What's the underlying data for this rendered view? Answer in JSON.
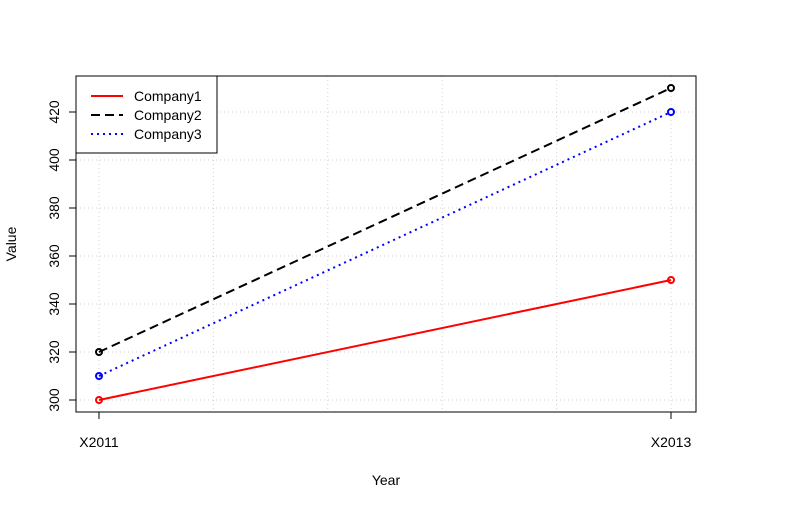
{
  "chart_data": {
    "type": "line",
    "title": "",
    "xlabel": "Year",
    "ylabel": "Value",
    "categories": [
      "X2011",
      "X2013"
    ],
    "x_tick_labels": [
      "X2011",
      "X2013"
    ],
    "y_ticks": [
      300,
      320,
      340,
      360,
      380,
      400,
      420
    ],
    "ylim": [
      295,
      435
    ],
    "grid": true,
    "legend_position": "top-left",
    "series": [
      {
        "name": "Company1",
        "values": [
          300,
          350
        ],
        "color": "#ff0000",
        "line_style": "solid"
      },
      {
        "name": "Company2",
        "values": [
          320,
          430
        ],
        "color": "#000000",
        "line_style": "dashed"
      },
      {
        "name": "Company3",
        "values": [
          310,
          420
        ],
        "color": "#0000ff",
        "line_style": "dotted"
      }
    ]
  }
}
